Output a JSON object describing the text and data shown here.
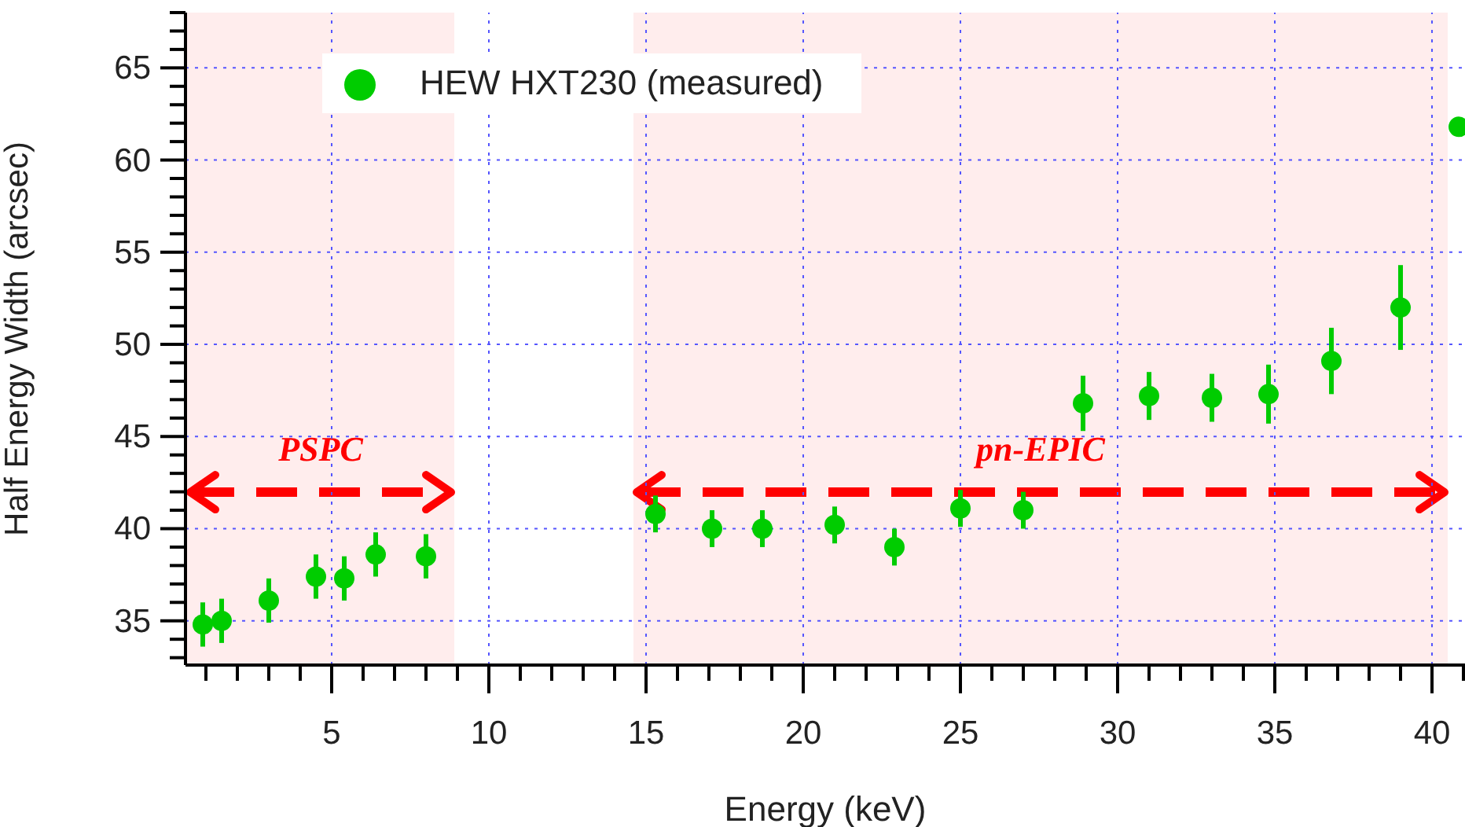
{
  "chart_data": {
    "type": "scatter",
    "xlabel": "Energy (keV)",
    "ylabel": "Half Energy Width (arcsec)",
    "x": [
      0.9,
      1.5,
      3.0,
      4.5,
      5.4,
      6.4,
      8.0,
      15.3,
      17.1,
      18.7,
      21.0,
      22.9,
      25.0,
      27.0,
      28.9,
      31.0,
      33.0,
      34.8,
      36.8,
      39.0,
      40.85
    ],
    "series": [
      {
        "name": "HEW HXT230 (measured)",
        "color": "#00cc00",
        "values": [
          34.8,
          35.0,
          36.1,
          37.4,
          37.3,
          38.6,
          38.5,
          40.8,
          40.0,
          40.0,
          40.2,
          39.0,
          41.1,
          41.0,
          46.8,
          47.2,
          47.1,
          47.3,
          49.1,
          52.0,
          61.8
        ],
        "errors": [
          1.2,
          1.2,
          1.2,
          1.2,
          1.2,
          1.2,
          1.2,
          1.0,
          1.0,
          1.0,
          1.0,
          1.0,
          1.0,
          1.0,
          1.5,
          1.3,
          1.3,
          1.6,
          1.8,
          2.3,
          null
        ]
      }
    ],
    "marker": "circle",
    "xlim": [
      0.35,
      41.05
    ],
    "xticks": [
      {
        "value": 1,
        "label": null
      },
      {
        "value": 2,
        "label": null
      },
      {
        "value": 3,
        "label": null
      },
      {
        "value": 4,
        "label": null
      },
      5,
      {
        "value": 6,
        "label": null
      },
      {
        "value": 7,
        "label": null
      },
      {
        "value": 8,
        "label": null
      },
      {
        "value": 9,
        "label": null
      },
      10,
      {
        "value": 11,
        "label": null
      },
      {
        "value": 12,
        "label": null
      },
      {
        "value": 13,
        "label": null
      },
      {
        "value": 14,
        "label": null
      },
      15,
      {
        "value": 16,
        "label": null
      },
      {
        "value": 17,
        "label": null
      },
      {
        "value": 18,
        "label": null
      },
      {
        "value": 19,
        "label": null
      },
      20,
      {
        "value": 21,
        "label": null
      },
      {
        "value": 22,
        "label": null
      },
      {
        "value": 23,
        "label": null
      },
      {
        "value": 24,
        "label": null
      },
      25,
      {
        "value": 26,
        "label": null
      },
      {
        "value": 27,
        "label": null
      },
      {
        "value": 28,
        "label": null
      },
      {
        "value": 29,
        "label": null
      },
      30,
      {
        "value": 31,
        "label": null
      },
      {
        "value": 32,
        "label": null
      },
      {
        "value": 33,
        "label": null
      },
      {
        "value": 34,
        "label": null
      },
      35,
      {
        "value": 36,
        "label": null
      },
      {
        "value": 37,
        "label": null
      },
      {
        "value": 38,
        "label": null
      },
      {
        "value": 39,
        "label": null
      },
      40,
      {
        "value": 41,
        "label": null
      }
    ],
    "ylim": [
      32.6,
      68
    ],
    "yticks": [
      {
        "value": 33,
        "label": null
      },
      {
        "value": 34,
        "label": null
      },
      35,
      {
        "value": 36,
        "label": null
      },
      {
        "value": 37,
        "label": null
      },
      {
        "value": 38,
        "label": null
      },
      {
        "value": 39,
        "label": null
      },
      40,
      {
        "value": 41,
        "label": null
      },
      {
        "value": 42,
        "label": null
      },
      {
        "value": 43,
        "label": null
      },
      {
        "value": 44,
        "label": null
      },
      45,
      {
        "value": 46,
        "label": null
      },
      {
        "value": 47,
        "label": null
      },
      {
        "value": 48,
        "label": null
      },
      {
        "value": 49,
        "label": null
      },
      50,
      {
        "value": 51,
        "label": null
      },
      {
        "value": 52,
        "label": null
      },
      {
        "value": 53,
        "label": null
      },
      {
        "value": 54,
        "label": null
      },
      55,
      {
        "value": 56,
        "label": null
      },
      {
        "value": 57,
        "label": null
      },
      {
        "value": 58,
        "label": null
      },
      {
        "value": 59,
        "label": null
      },
      60,
      {
        "value": 61,
        "label": null
      },
      {
        "value": 62,
        "label": null
      },
      {
        "value": 63,
        "label": null
      },
      {
        "value": 64,
        "label": null
      },
      65,
      {
        "value": 66,
        "label": null
      },
      {
        "value": 67,
        "label": null
      },
      {
        "value": 68,
        "label": null
      }
    ],
    "grid": true,
    "legend": "top left",
    "bands": [
      {
        "axis": "x",
        "from": 0.4,
        "to": 8.9,
        "label": "PSPC",
        "color": "#ff0000"
      },
      {
        "axis": "x",
        "from": 14.6,
        "to": 40.5,
        "label": "pn-EPIC",
        "color": "#ff0000"
      }
    ]
  }
}
